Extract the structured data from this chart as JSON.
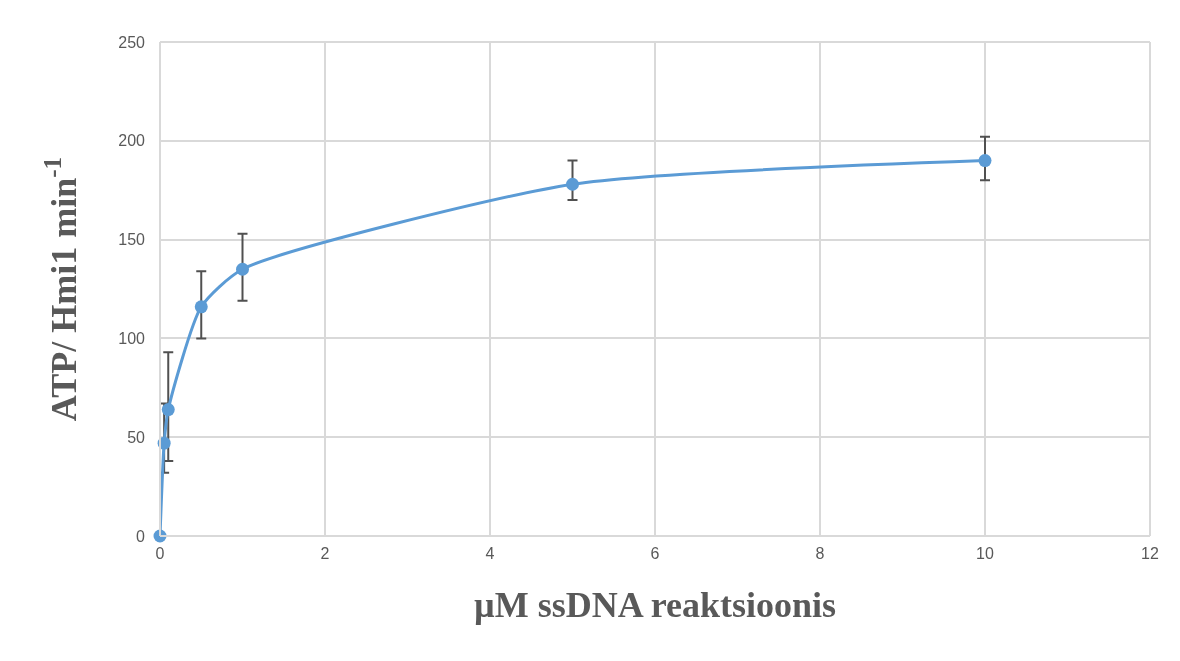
{
  "chart_data": {
    "type": "line",
    "xlabel": "µM ssDNA reaktsioonis",
    "ylabel": "ATP/ Hmi1 min$^{-1}$",
    "x": [
      0,
      0.05,
      0.1,
      0.5,
      1,
      5,
      10
    ],
    "series": [
      {
        "color": "#5b9bd5",
        "values": [
          0,
          47,
          64,
          116,
          135,
          178,
          190
        ],
        "errors": [
          null,
          [
            32,
            67
          ],
          [
            38,
            93
          ],
          [
            100,
            134
          ],
          [
            119,
            153
          ],
          [
            170,
            190
          ],
          [
            180,
            202
          ]
        ]
      }
    ],
    "xlim": [
      0,
      12
    ],
    "xticks": [
      0,
      2,
      4,
      6,
      8,
      10,
      12
    ],
    "ylim": [
      0,
      250
    ],
    "yticks": [
      0,
      50,
      100,
      150,
      200,
      250
    ],
    "grid": true,
    "marker": "circle",
    "line_style": "solid"
  }
}
